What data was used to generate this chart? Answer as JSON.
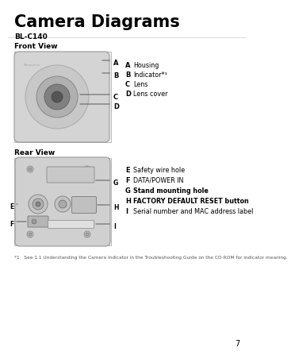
{
  "bg_color": "#ffffff",
  "title": "Camera Diagrams",
  "model": "BL-C140",
  "front_view_label": "Front View",
  "rear_view_label": "Rear View",
  "front_labels": [
    {
      "letter": "A",
      "desc": "Housing"
    },
    {
      "letter": "B",
      "desc": "Indicator*¹"
    },
    {
      "letter": "C",
      "desc": "Lens"
    },
    {
      "letter": "D",
      "desc": "Lens cover"
    }
  ],
  "rear_labels": [
    {
      "letter": "E",
      "desc": "Safety wire hole"
    },
    {
      "letter": "F",
      "desc": "DATA/POWER IN"
    },
    {
      "letter": "G",
      "desc": "Stand mounting hole"
    },
    {
      "letter": "H",
      "desc": "FACTORY DEFAULT RESET button"
    },
    {
      "letter": "I",
      "desc": "Serial number and MAC address label"
    }
  ],
  "footnote": "*1   See 1.1 Understanding the Camera Indicator in the Troubleshooting Guide on the CD-ROM for indicator meaning.",
  "page_number": "7",
  "border_color": "#bbbbbb",
  "text_color": "#000000",
  "camera_body_color": "#d4d4d4",
  "lens_plate_color": "#c8c8c8",
  "lens_ring_color": "#b0b0b0",
  "lens_center_color": "#808080",
  "lens_eye_color": "#555555"
}
